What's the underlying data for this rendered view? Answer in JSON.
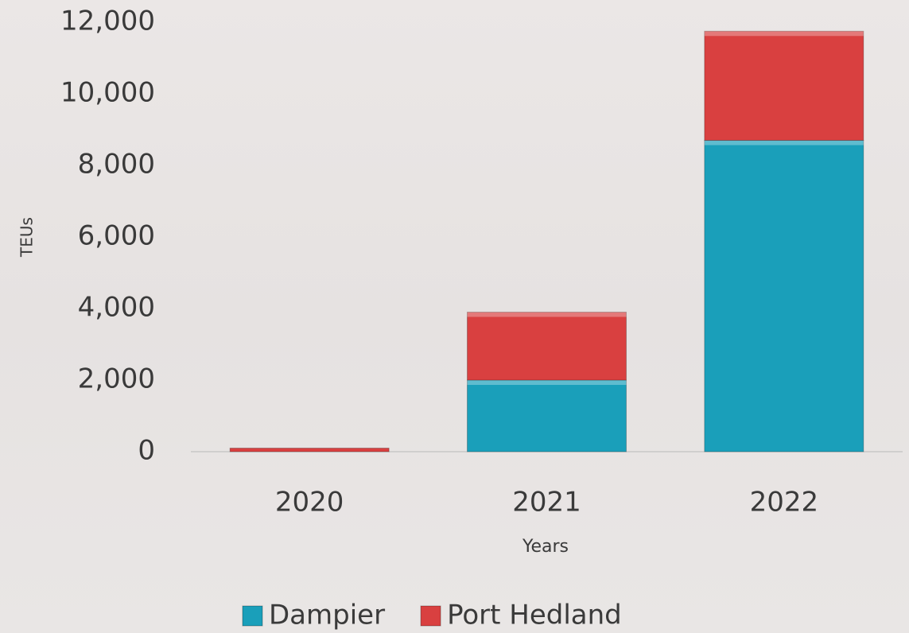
{
  "chart_data": {
    "type": "stacked_bar",
    "categories": [
      "2020",
      "2021",
      "2022"
    ],
    "series": [
      {
        "name": "Dampier",
        "color": "#1a9fba",
        "values": [
          0,
          2000,
          8700
        ]
      },
      {
        "name": "Port Hedland",
        "color": "#d94040",
        "values": [
          100,
          1900,
          3050
        ]
      }
    ],
    "ylim": [
      0,
      12000
    ],
    "yticks": [
      0,
      {
        "value": 2000,
        "label": "2,000"
      },
      {
        "value": 4000,
        "label": "4,000"
      },
      {
        "value": 6000,
        "label": "6,000"
      },
      {
        "value": 8000,
        "label": "8,000"
      },
      {
        "value": 10000,
        "label": "10,000"
      },
      {
        "value": 12000,
        "label": "12,000"
      }
    ],
    "x_label": "Years",
    "y_label": "TEUs",
    "grid": false,
    "legend": "bottom"
  }
}
